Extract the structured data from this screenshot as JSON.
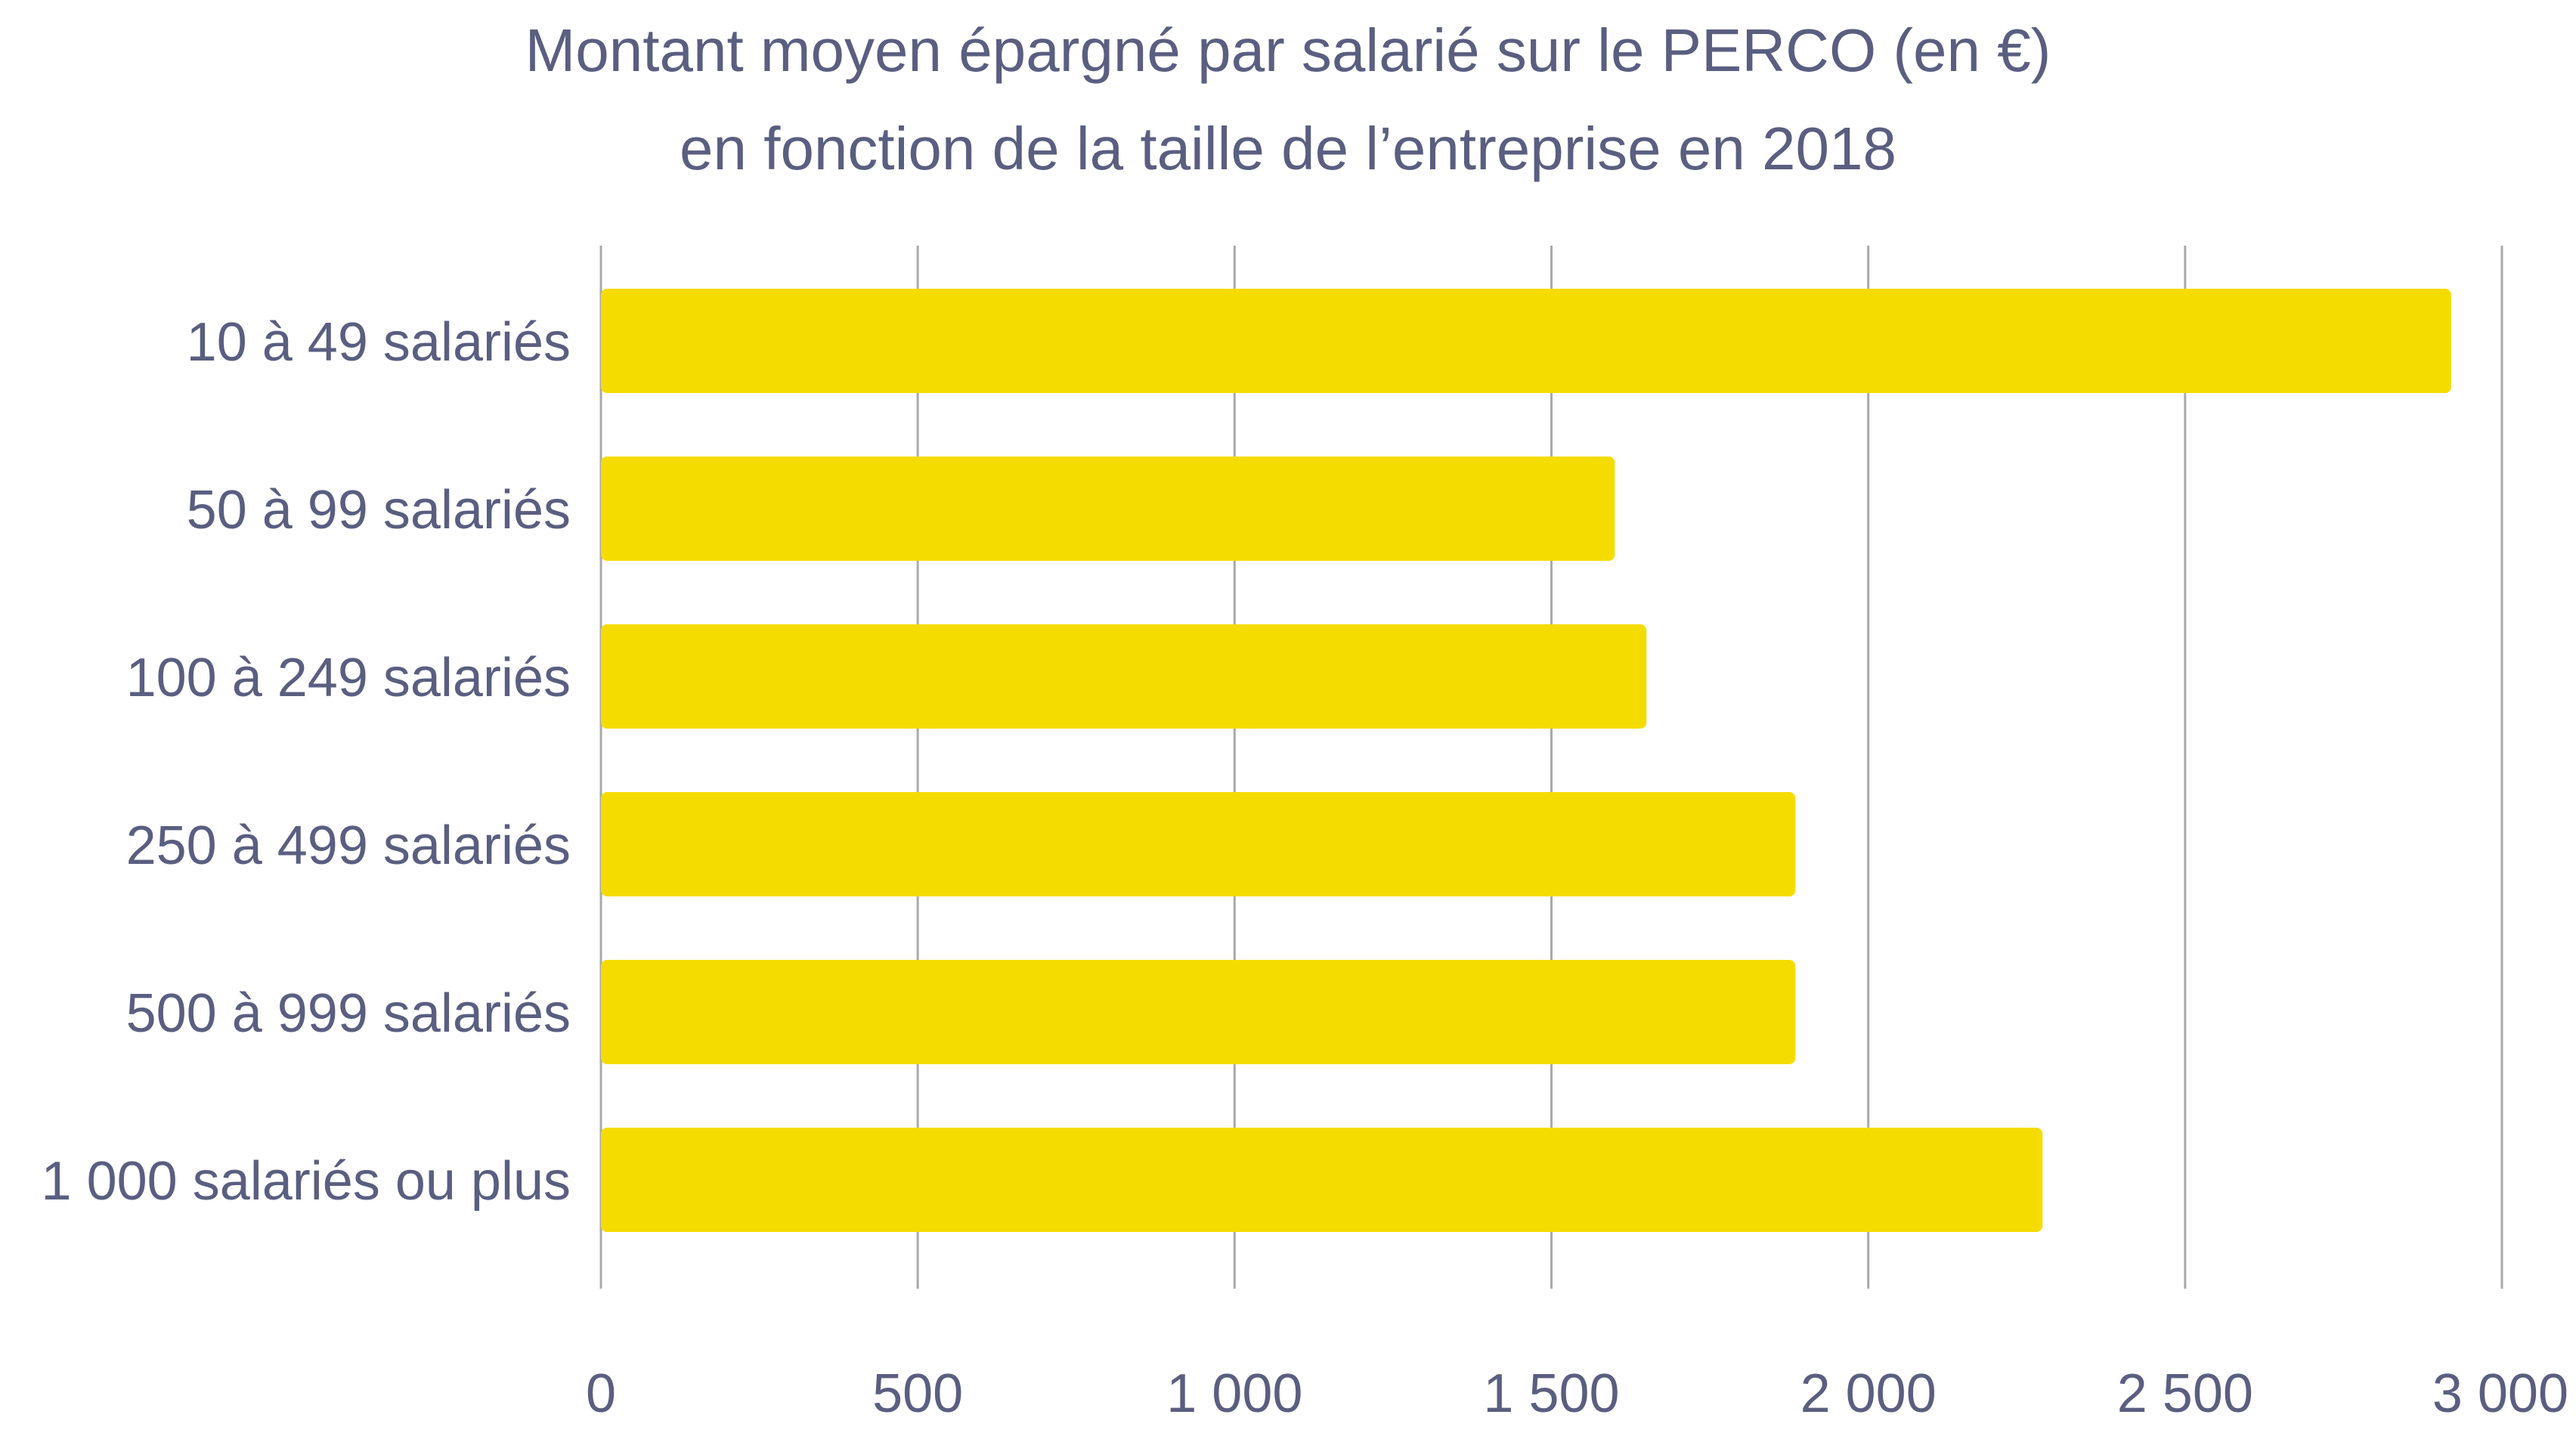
{
  "chart_data": {
    "type": "bar",
    "orientation": "horizontal",
    "title_line1": "Montant moyen épargné par salarié sur le PERCO (en €)",
    "title_line2": "en fonction de la taille de l’entreprise en 2018",
    "categories": [
      "10 à 49 salariés",
      "50 à 99 salariés",
      "100 à 249 salariés",
      "250 à 499 salariés",
      "500 à 999 salariés",
      "1 000 salariés ou plus"
    ],
    "values": [
      2920,
      1600,
      1650,
      1885,
      1885,
      2275
    ],
    "xlim": [
      0,
      3000
    ],
    "ticks": [
      0,
      500,
      1000,
      1500,
      2000,
      2500,
      3000
    ],
    "tick_labels": [
      "0",
      "500",
      "1 000",
      "1 500",
      "2 000",
      "2 500",
      "3 000"
    ],
    "grid": true,
    "bar_color": "#f5dc00",
    "grid_color": "#a9a9a9",
    "text_color": "#5a5e80"
  }
}
